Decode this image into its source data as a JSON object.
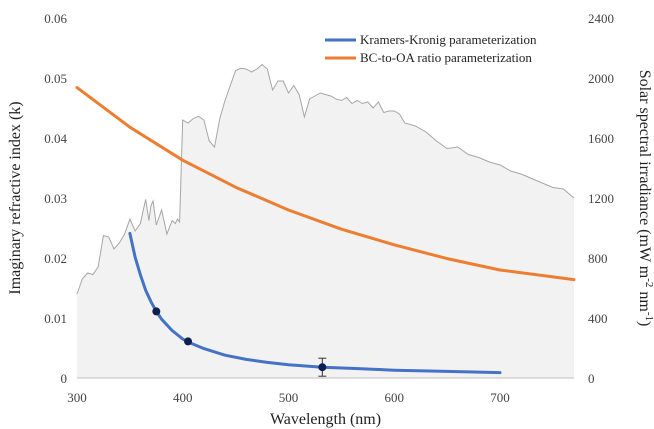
{
  "chart_data": {
    "type": "line",
    "title": "",
    "xlabel": "Wavelength (nm)",
    "ylabel": "Imaginary refractive index (k)",
    "y2label_parts": {
      "base": "Solar spectral irradiance (mW m",
      "sup1": "-2",
      "mid": " nm",
      "sup2": "-1",
      "end": ")"
    },
    "xlim": [
      300,
      770
    ],
    "ylim": [
      0,
      0.06
    ],
    "y2lim": [
      0,
      2400
    ],
    "x_ticks": [
      300,
      400,
      500,
      600,
      700
    ],
    "x_tick_labels": [
      "300",
      "400",
      "500",
      "600",
      "700"
    ],
    "y_ticks": [
      0,
      0.01,
      0.02,
      0.03,
      0.04,
      0.05,
      0.06
    ],
    "y_tick_labels": [
      "0",
      "0.01",
      "0.02",
      "0.03",
      "0.04",
      "0.05",
      "0.06"
    ],
    "y2_ticks": [
      0,
      400,
      800,
      1200,
      1600,
      2000,
      2400
    ],
    "y2_tick_labels": [
      "0",
      "400",
      "800",
      "1200",
      "1600",
      "2000",
      "2400"
    ],
    "grid": false,
    "legend_position": "top-right",
    "colors": {
      "kramers": "#4472C4",
      "bcoa": "#ED7D31",
      "spectrum_fill": "#F2F2F2",
      "spectrum_line": "#A6A6A6",
      "marker": "#0D1F4E"
    },
    "series": [
      {
        "name": "Kramers-Kronig parameterization",
        "axis": "left",
        "x": [
          350,
          355,
          360,
          365,
          370,
          375,
          380,
          390,
          400,
          405,
          420,
          440,
          460,
          480,
          500,
          532,
          560,
          600,
          650,
          700
        ],
        "y": [
          0.0241,
          0.0201,
          0.0172,
          0.0146,
          0.0127,
          0.0111,
          0.0098,
          0.0079,
          0.0065,
          0.006,
          0.0049,
          0.0038,
          0.0031,
          0.0026,
          0.0022,
          0.0018,
          0.0016,
          0.0013,
          0.0011,
          0.0009
        ]
      },
      {
        "name": "BC-to-OA ratio parameterization",
        "axis": "left",
        "x": [
          300,
          350,
          400,
          450,
          500,
          550,
          600,
          650,
          700,
          770
        ],
        "y": [
          0.0484,
          0.0418,
          0.0363,
          0.0318,
          0.028,
          0.0248,
          0.0222,
          0.0199,
          0.018,
          0.0164
        ]
      },
      {
        "name": "",
        "axis": "right",
        "x": [
          300,
          305,
          310,
          315,
          320,
          325,
          330,
          335,
          340,
          345,
          350,
          355,
          360,
          362,
          365,
          368,
          370,
          372,
          375,
          378,
          380,
          385,
          390,
          393,
          395,
          397,
          400,
          405,
          410,
          415,
          420,
          425,
          430,
          435,
          440,
          445,
          450,
          455,
          460,
          465,
          470,
          475,
          480,
          485,
          490,
          495,
          500,
          505,
          510,
          515,
          520,
          525,
          530,
          535,
          540,
          545,
          550,
          555,
          560,
          565,
          570,
          575,
          580,
          585,
          590,
          595,
          600,
          605,
          610,
          620,
          630,
          640,
          650,
          660,
          670,
          680,
          690,
          700,
          710,
          720,
          730,
          740,
          750,
          760,
          770
        ],
        "y": [
          560,
          660,
          700,
          690,
          740,
          950,
          940,
          860,
          900,
          960,
          1060,
          980,
          1030,
          1100,
          1190,
          1050,
          1150,
          1180,
          1020,
          1080,
          1120,
          960,
          1050,
          1030,
          1060,
          1040,
          1720,
          1700,
          1730,
          1745,
          1720,
          1580,
          1540,
          1730,
          1850,
          1950,
          2050,
          2065,
          2060,
          2040,
          2060,
          2090,
          2060,
          1920,
          1980,
          1980,
          1900,
          1950,
          1890,
          1740,
          1860,
          1880,
          1900,
          1890,
          1880,
          1860,
          1850,
          1870,
          1830,
          1850,
          1830,
          1840,
          1800,
          1840,
          1770,
          1780,
          1780,
          1760,
          1700,
          1680,
          1640,
          1580,
          1530,
          1540,
          1490,
          1470,
          1440,
          1420,
          1380,
          1360,
          1330,
          1300,
          1270,
          1260,
          1200
        ]
      }
    ],
    "markers": {
      "x": [
        375,
        405,
        532
      ],
      "y": [
        0.0111,
        0.0061,
        0.0018
      ],
      "error": [
        0,
        0,
        0.0015
      ]
    }
  }
}
